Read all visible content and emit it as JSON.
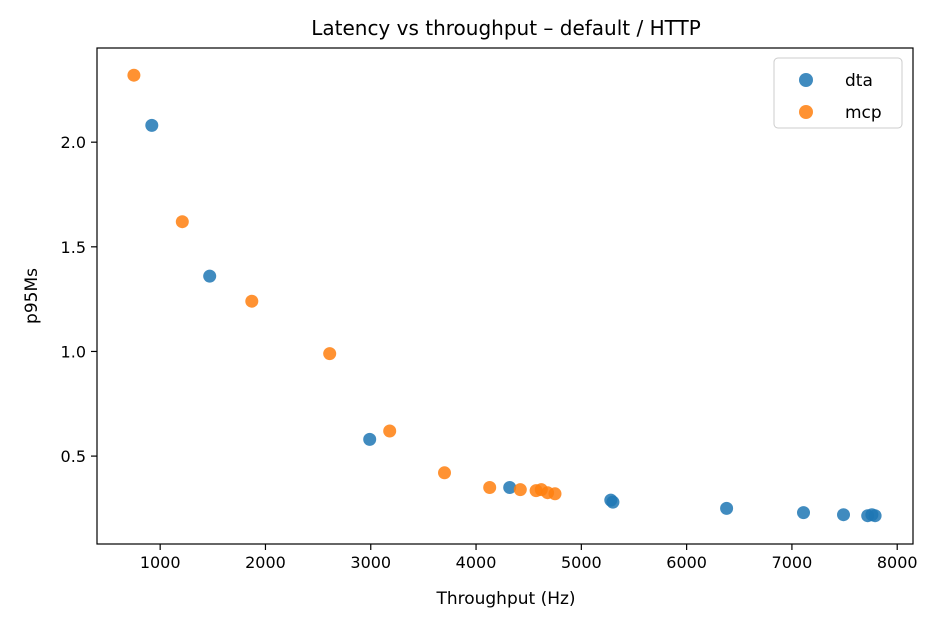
{
  "chart_data": {
    "type": "scatter",
    "title": "Latency vs throughput – default / HTTP",
    "xlabel": "Throughput (Hz)",
    "ylabel": "p95Ms",
    "xlim": [
      400,
      8150
    ],
    "ylim": [
      0.08,
      2.45
    ],
    "xticks": [
      1000,
      2000,
      3000,
      4000,
      5000,
      6000,
      7000,
      8000
    ],
    "yticks": [
      0.5,
      1.0,
      1.5,
      2.0
    ],
    "xtick_labels": [
      "1000",
      "2000",
      "3000",
      "4000",
      "5000",
      "6000",
      "7000",
      "8000"
    ],
    "ytick_labels": [
      "0.5",
      "1.0",
      "1.5",
      "2.0"
    ],
    "grid": false,
    "legend_position": "top-right",
    "series": [
      {
        "name": "dta",
        "color": "#1f77b4",
        "points": [
          {
            "x": 920,
            "y": 2.08
          },
          {
            "x": 1470,
            "y": 1.36
          },
          {
            "x": 2990,
            "y": 0.58
          },
          {
            "x": 4320,
            "y": 0.35
          },
          {
            "x": 5280,
            "y": 0.29
          },
          {
            "x": 5300,
            "y": 0.28
          },
          {
            "x": 6380,
            "y": 0.25
          },
          {
            "x": 7110,
            "y": 0.23
          },
          {
            "x": 7490,
            "y": 0.22
          },
          {
            "x": 7720,
            "y": 0.215
          },
          {
            "x": 7760,
            "y": 0.22
          },
          {
            "x": 7790,
            "y": 0.215
          }
        ]
      },
      {
        "name": "mcp",
        "color": "#ff7f0e",
        "points": [
          {
            "x": 750,
            "y": 2.32
          },
          {
            "x": 1210,
            "y": 1.62
          },
          {
            "x": 1870,
            "y": 1.24
          },
          {
            "x": 2610,
            "y": 0.99
          },
          {
            "x": 3180,
            "y": 0.62
          },
          {
            "x": 3700,
            "y": 0.42
          },
          {
            "x": 4130,
            "y": 0.35
          },
          {
            "x": 4420,
            "y": 0.34
          },
          {
            "x": 4570,
            "y": 0.335
          },
          {
            "x": 4620,
            "y": 0.34
          },
          {
            "x": 4680,
            "y": 0.325
          },
          {
            "x": 4750,
            "y": 0.32
          }
        ]
      }
    ]
  }
}
